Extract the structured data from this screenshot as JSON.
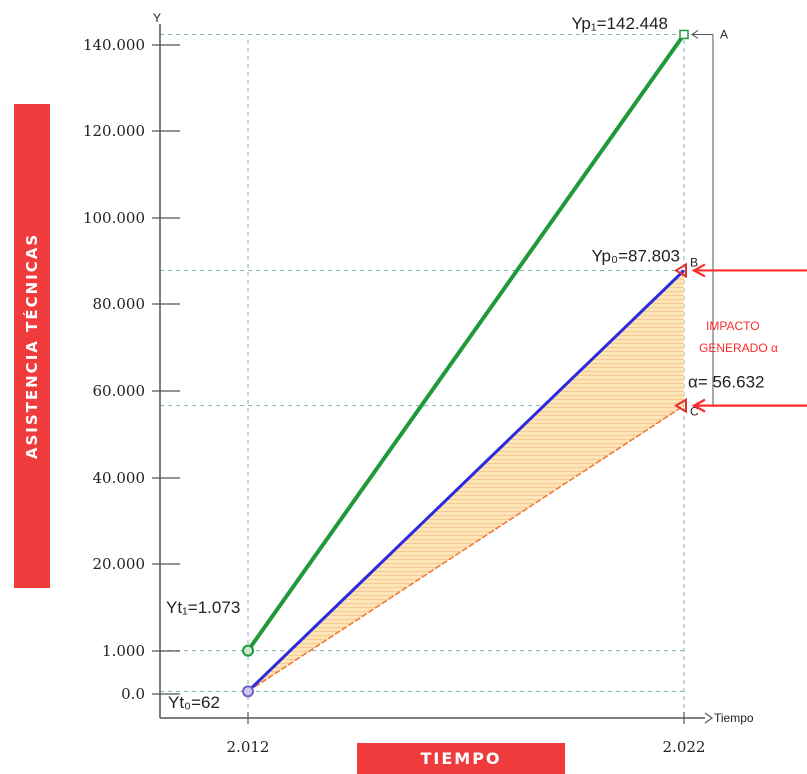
{
  "chart_data": {
    "type": "line",
    "ylabel": "ASISTENCIA TÉCNICAS",
    "xlabel": "TIEMPO",
    "y_axis_letter": "Y",
    "x_axis_name": "Tiempo",
    "x_ticks": [
      "2.012",
      "2.022"
    ],
    "y_ticks": [
      {
        "label": "0.0",
        "value": 0
      },
      {
        "label": "1.000",
        "value": 1000
      },
      {
        "label": "20.000",
        "value": 20000
      },
      {
        "label": "40.000",
        "value": 40000
      },
      {
        "label": "60.000",
        "value": 60000
      },
      {
        "label": "80.000",
        "value": 80000
      },
      {
        "label": "100.000",
        "value": 100000
      },
      {
        "label": "120.000",
        "value": 120000
      },
      {
        "label": "140.000",
        "value": 140000
      }
    ],
    "series": [
      {
        "color": "#1f9a3a",
        "x": [
          2012,
          2022
        ],
        "y": [
          1073,
          142448
        ]
      },
      {
        "color": "#2a2ae0",
        "x": [
          2012,
          2022
        ],
        "y": [
          62,
          87803
        ]
      },
      {
        "color": "#f07a3a",
        "x": [
          2012,
          2022
        ],
        "y": [
          62,
          56632
        ]
      }
    ],
    "annotations": {
      "yp1": "Yp₁=142.448",
      "yp0": "Yp₀=87.803",
      "yt1": "Yt₁=1.073",
      "yt0": "Yt₀=62",
      "alpha": "α= 56.632",
      "impact_line1": "IMPACTO",
      "impact_line2": "GENERADO α",
      "marker_a": "A",
      "marker_b": "B",
      "marker_c": "C"
    },
    "fill_color": "#fde5b8",
    "grid": "dashed"
  }
}
